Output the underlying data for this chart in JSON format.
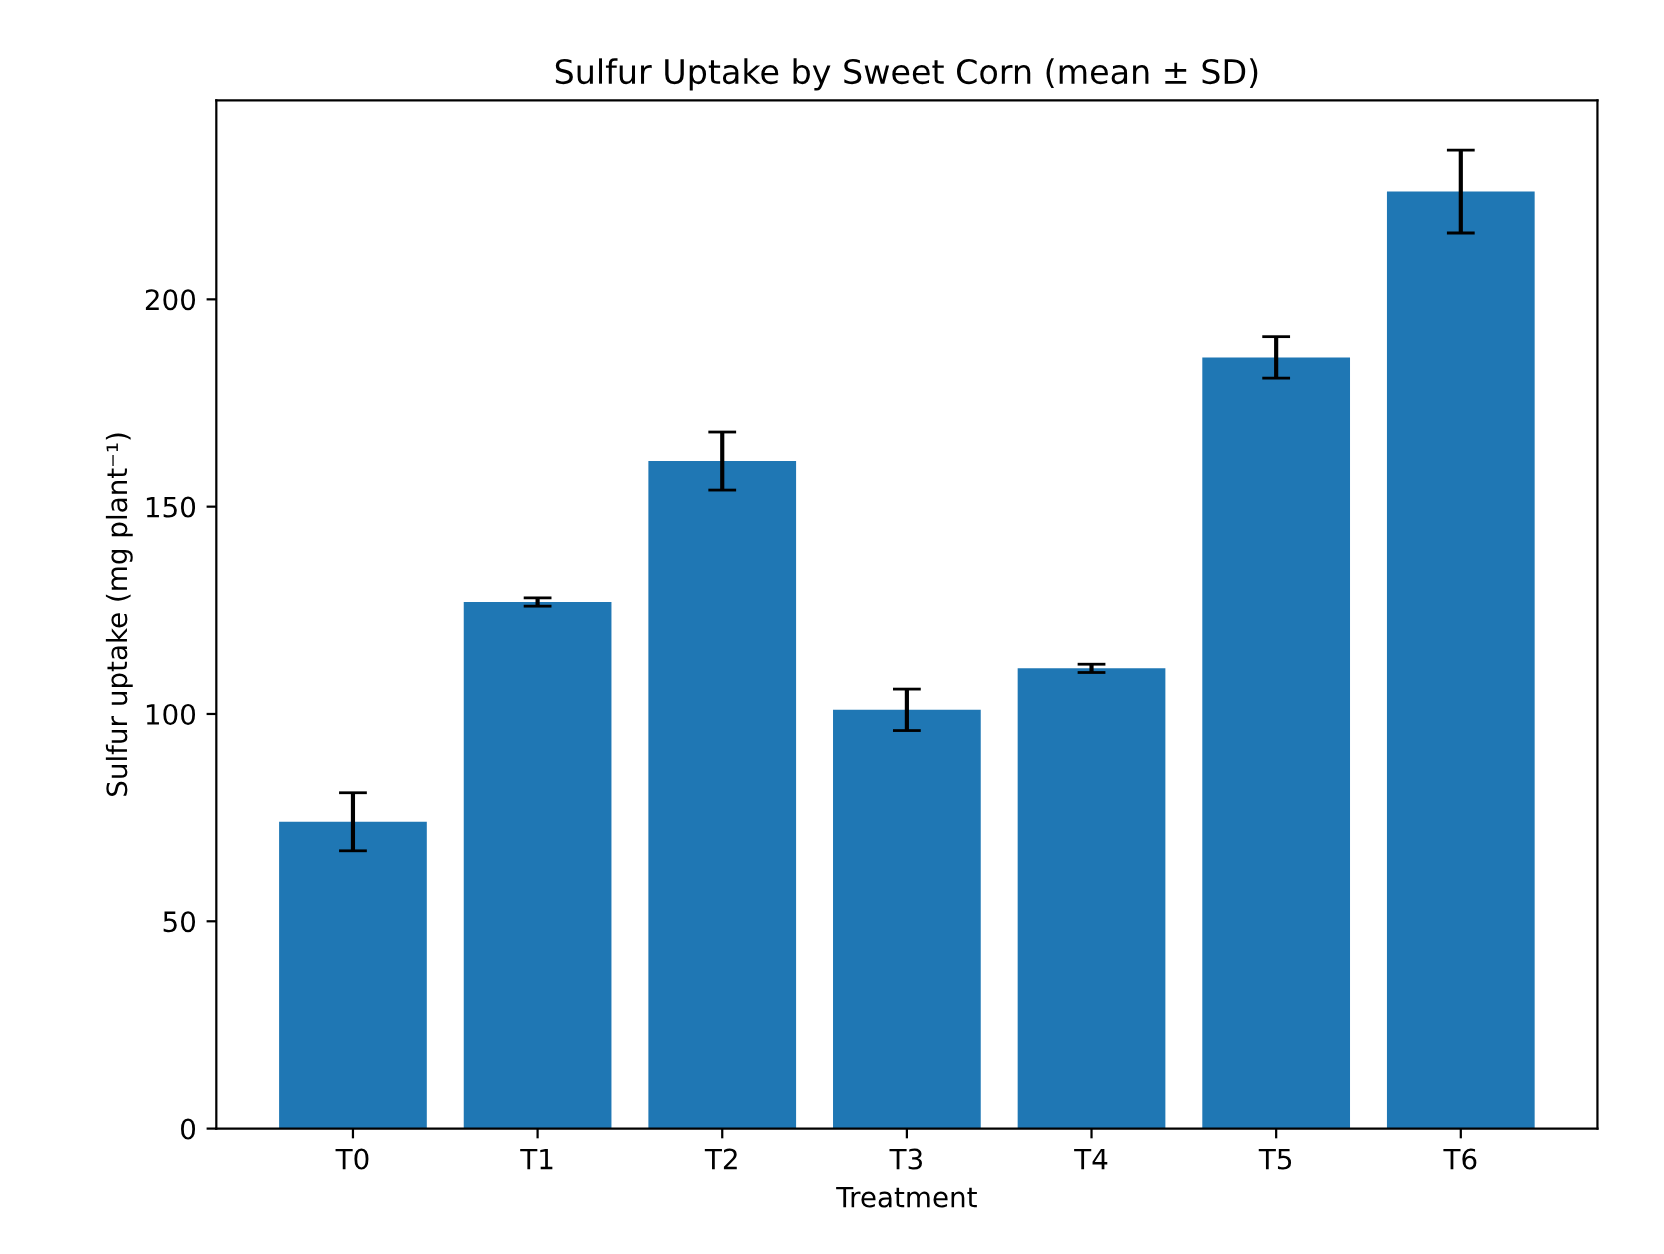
{
  "chart_data": {
    "type": "bar",
    "title": "Sulfur Uptake by Sweet Corn (mean ± SD)",
    "xlabel": "Treatment",
    "ylabel": "Sulfur uptake (mg plant⁻¹)",
    "categories": [
      "T0",
      "T1",
      "T2",
      "T3",
      "T4",
      "T5",
      "T6"
    ],
    "values": [
      74,
      127,
      161,
      101,
      111,
      186,
      226
    ],
    "errors": [
      7,
      1,
      7,
      5,
      1,
      5,
      10
    ],
    "color": "#1f77b4",
    "ylim": [
      0,
      248
    ],
    "yticks": [
      0,
      50,
      100,
      150,
      200
    ],
    "grid": false,
    "legend": false
  }
}
